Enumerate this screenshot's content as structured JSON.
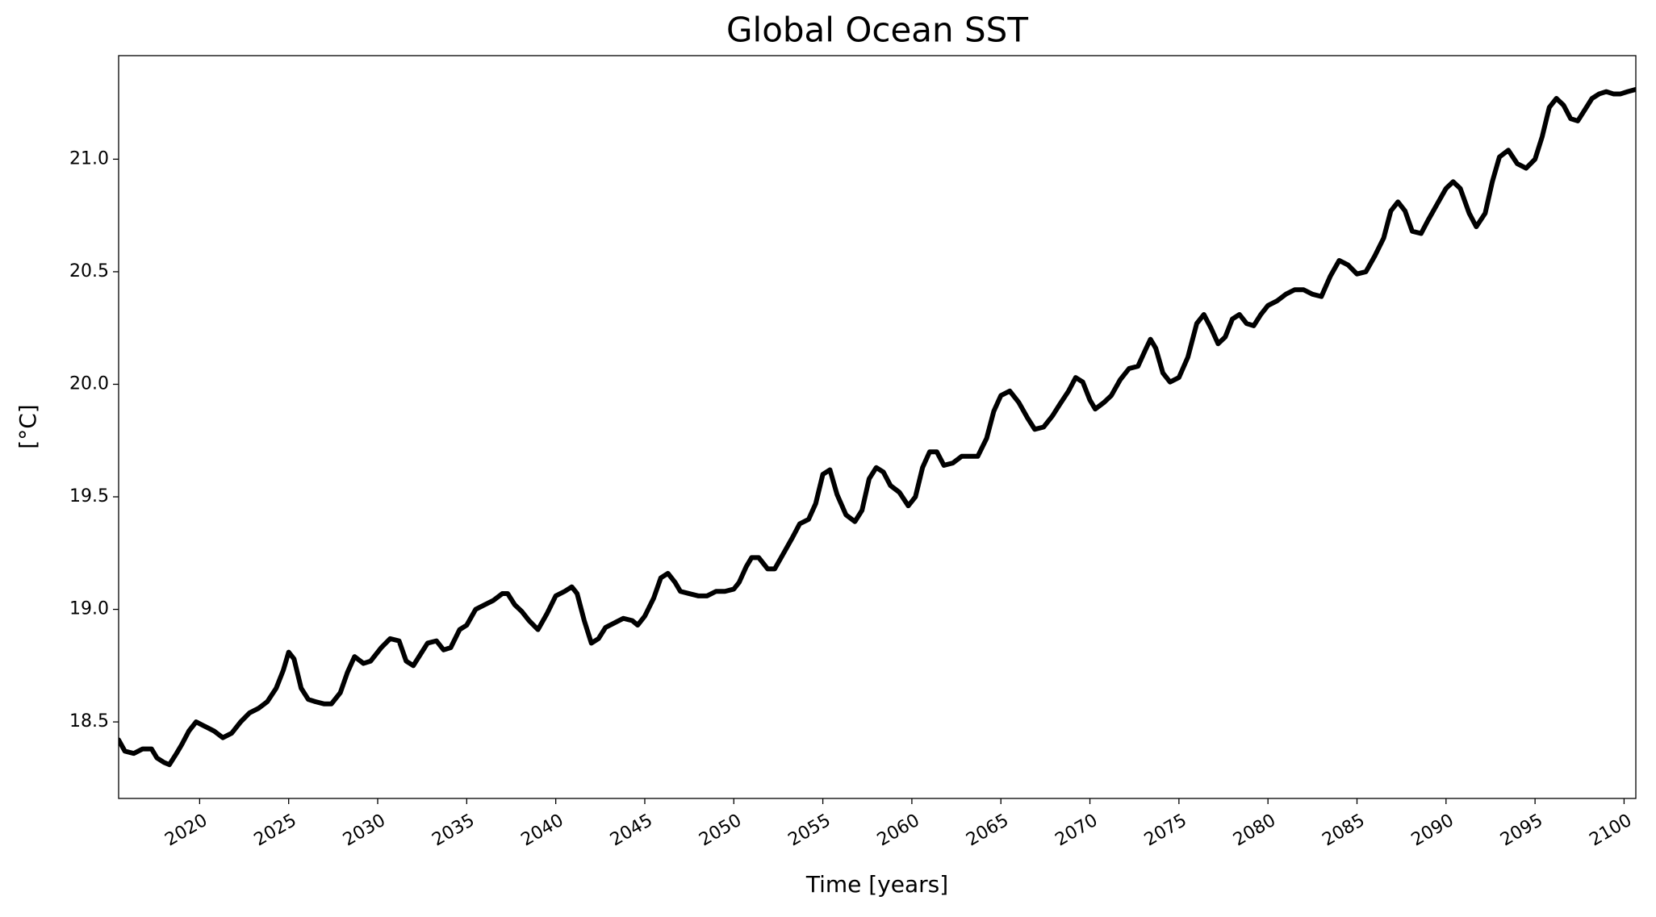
{
  "chart_data": {
    "type": "line",
    "title": "Global Ocean SST",
    "xlabel": "Time [years]",
    "ylabel": "[°C]",
    "x": [
      2015.45,
      2015.8,
      2016.3,
      2016.8,
      2017.3,
      2017.6,
      2018.0,
      2018.3,
      2018.7,
      2019.0,
      2019.4,
      2019.8,
      2020.3,
      2020.8,
      2021.3,
      2021.8,
      2022.3,
      2022.8,
      2023.3,
      2023.8,
      2024.3,
      2024.7,
      2025.0,
      2025.3,
      2025.7,
      2026.1,
      2026.5,
      2027.0,
      2027.4,
      2027.9,
      2028.3,
      2028.7,
      2029.2,
      2029.6,
      2030.2,
      2030.7,
      2031.2,
      2031.6,
      2032.0,
      2032.4,
      2032.8,
      2033.3,
      2033.7,
      2034.1,
      2034.6,
      2035.0,
      2035.5,
      2036.0,
      2036.5,
      2037.0,
      2037.3,
      2037.7,
      2038.1,
      2038.5,
      2039.0,
      2039.5,
      2040.0,
      2040.5,
      2040.9,
      2041.2,
      2041.6,
      2042.0,
      2042.4,
      2042.8,
      2043.3,
      2043.8,
      2044.3,
      2044.6,
      2045.0,
      2045.5,
      2045.9,
      2046.3,
      2046.7,
      2047.0,
      2047.5,
      2048.0,
      2048.5,
      2049.0,
      2049.5,
      2050.0,
      2050.3,
      2050.7,
      2051.0,
      2051.4,
      2051.9,
      2052.3,
      2052.8,
      2053.3,
      2053.7,
      2054.2,
      2054.6,
      2055.0,
      2055.4,
      2055.8,
      2056.3,
      2056.8,
      2057.2,
      2057.6,
      2058.0,
      2058.4,
      2058.8,
      2059.3,
      2059.8,
      2060.2,
      2060.6,
      2061.0,
      2061.4,
      2061.8,
      2062.3,
      2062.8,
      2063.3,
      2063.7,
      2064.2,
      2064.6,
      2065.0,
      2065.5,
      2066.0,
      2066.5,
      2066.9,
      2067.4,
      2067.9,
      2068.3,
      2068.8,
      2069.2,
      2069.6,
      2070.0,
      2070.3,
      2070.8,
      2071.2,
      2071.7,
      2072.2,
      2072.7,
      2073.1,
      2073.4,
      2073.7,
      2074.1,
      2074.5,
      2075.0,
      2075.5,
      2076.0,
      2076.4,
      2076.8,
      2077.2,
      2077.6,
      2078.0,
      2078.4,
      2078.8,
      2079.2,
      2079.6,
      2080.0,
      2080.5,
      2081.0,
      2081.5,
      2082.0,
      2082.5,
      2083.0,
      2083.5,
      2084.0,
      2084.5,
      2085.0,
      2085.5,
      2086.0,
      2086.5,
      2086.9,
      2087.3,
      2087.7,
      2088.1,
      2088.6,
      2089.0,
      2089.5,
      2090.0,
      2090.4,
      2090.8,
      2091.3,
      2091.7,
      2092.2,
      2092.6,
      2093.0,
      2093.5,
      2094.0,
      2094.5,
      2095.0,
      2095.4,
      2095.8,
      2096.2,
      2096.6,
      2097.0,
      2097.4,
      2097.8,
      2098.2,
      2098.6,
      2099.0,
      2099.4,
      2099.8,
      2100.2,
      2100.66
    ],
    "y": [
      18.42,
      18.37,
      18.36,
      18.38,
      18.38,
      18.34,
      18.32,
      18.31,
      18.36,
      18.4,
      18.46,
      18.5,
      18.48,
      18.46,
      18.43,
      18.45,
      18.5,
      18.54,
      18.56,
      18.59,
      18.65,
      18.73,
      18.81,
      18.78,
      18.65,
      18.6,
      18.59,
      18.58,
      18.58,
      18.63,
      18.72,
      18.79,
      18.76,
      18.77,
      18.83,
      18.87,
      18.86,
      18.77,
      18.75,
      18.8,
      18.85,
      18.86,
      18.82,
      18.83,
      18.91,
      18.93,
      19.0,
      19.02,
      19.04,
      19.07,
      19.07,
      19.02,
      18.99,
      18.95,
      18.91,
      18.98,
      19.06,
      19.08,
      19.1,
      19.07,
      18.95,
      18.85,
      18.87,
      18.92,
      18.94,
      18.96,
      18.95,
      18.93,
      18.97,
      19.05,
      19.14,
      19.16,
      19.12,
      19.08,
      19.07,
      19.06,
      19.06,
      19.08,
      19.08,
      19.09,
      19.12,
      19.19,
      19.23,
      19.23,
      19.18,
      19.18,
      19.25,
      19.32,
      19.38,
      19.4,
      19.47,
      19.6,
      19.62,
      19.51,
      19.42,
      19.39,
      19.44,
      19.58,
      19.63,
      19.61,
      19.55,
      19.52,
      19.46,
      19.5,
      19.63,
      19.7,
      19.7,
      19.64,
      19.65,
      19.68,
      19.68,
      19.68,
      19.76,
      19.88,
      19.95,
      19.97,
      19.92,
      19.85,
      19.8,
      19.81,
      19.86,
      19.91,
      19.97,
      20.03,
      20.01,
      19.93,
      19.89,
      19.92,
      19.95,
      20.02,
      20.07,
      20.08,
      20.15,
      20.2,
      20.16,
      20.05,
      20.01,
      20.03,
      20.12,
      20.27,
      20.31,
      20.25,
      20.18,
      20.21,
      20.29,
      20.31,
      20.27,
      20.26,
      20.31,
      20.35,
      20.37,
      20.4,
      20.42,
      20.42,
      20.4,
      20.39,
      20.48,
      20.55,
      20.53,
      20.49,
      20.5,
      20.57,
      20.65,
      20.77,
      20.81,
      20.77,
      20.68,
      20.67,
      20.73,
      20.8,
      20.87,
      20.9,
      20.87,
      20.76,
      20.7,
      20.76,
      20.9,
      21.01,
      21.04,
      20.98,
      20.96,
      21.0,
      21.1,
      21.23,
      21.27,
      21.24,
      21.18,
      21.17,
      21.22,
      21.27,
      21.29,
      21.3,
      21.29,
      21.29,
      21.3,
      21.31
    ],
    "color": "#000000",
    "xlim": [
      2015.45,
      2100.66
    ],
    "ylim": [
      18.16,
      21.46
    ],
    "xticks": [
      2020,
      2025,
      2030,
      2035,
      2040,
      2045,
      2050,
      2055,
      2060,
      2065,
      2070,
      2075,
      2080,
      2085,
      2090,
      2095,
      2100
    ],
    "yticks": [
      18.5,
      {
        "value": 19,
        "label": "19.0"
      },
      19.5,
      {
        "value": 20,
        "label": "20.0"
      },
      20.5,
      {
        "value": 21,
        "label": "21.0"
      }
    ],
    "grid": false
  }
}
